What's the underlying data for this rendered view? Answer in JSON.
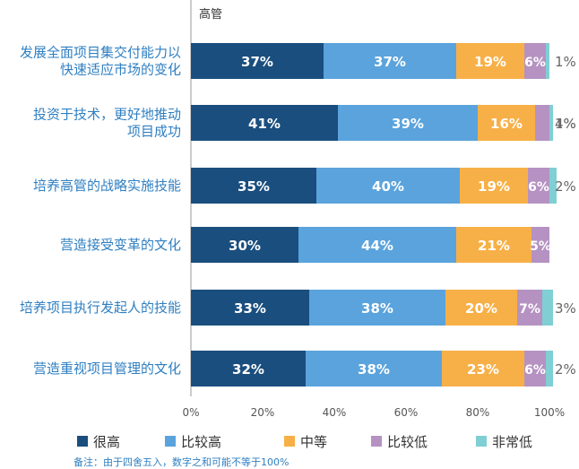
{
  "chart_data": {
    "type": "bar",
    "orientation": "horizontal",
    "stacked": true,
    "subtitle": "高管",
    "categories": [
      "发展全面项目集交付能力以\n快速适应市场的变化",
      "投资于技术，更好地推动\n项目成功",
      "培养高管的战略实施技能",
      "营造接受变革的文化",
      "培养项目执行发起人的技能",
      "营造重视项目管理的文化"
    ],
    "series": [
      {
        "name": "很高",
        "color": "#1a4e7e",
        "values": [
          37,
          41,
          35,
          30,
          33,
          32
        ]
      },
      {
        "name": "比较高",
        "color": "#5ba3dc",
        "values": [
          37,
          39,
          40,
          44,
          38,
          38
        ]
      },
      {
        "name": "中等",
        "color": "#f7b047",
        "values": [
          19,
          16,
          19,
          21,
          20,
          23
        ]
      },
      {
        "name": "比较低",
        "color": "#b592c2",
        "values": [
          6,
          4,
          6,
          5,
          7,
          6
        ]
      },
      {
        "name": "非常低",
        "color": "#7fcfd4",
        "values": [
          1,
          1,
          2,
          0,
          3,
          2
        ]
      }
    ],
    "label_suffix": "%",
    "xlim": [
      0,
      100
    ],
    "xticks": [
      "0%",
      "20%",
      "40%",
      "60%",
      "80%",
      "100%"
    ],
    "legend_position": "bottom",
    "note": "备注：由于四舍五入，数字之和可能不等于100%"
  }
}
